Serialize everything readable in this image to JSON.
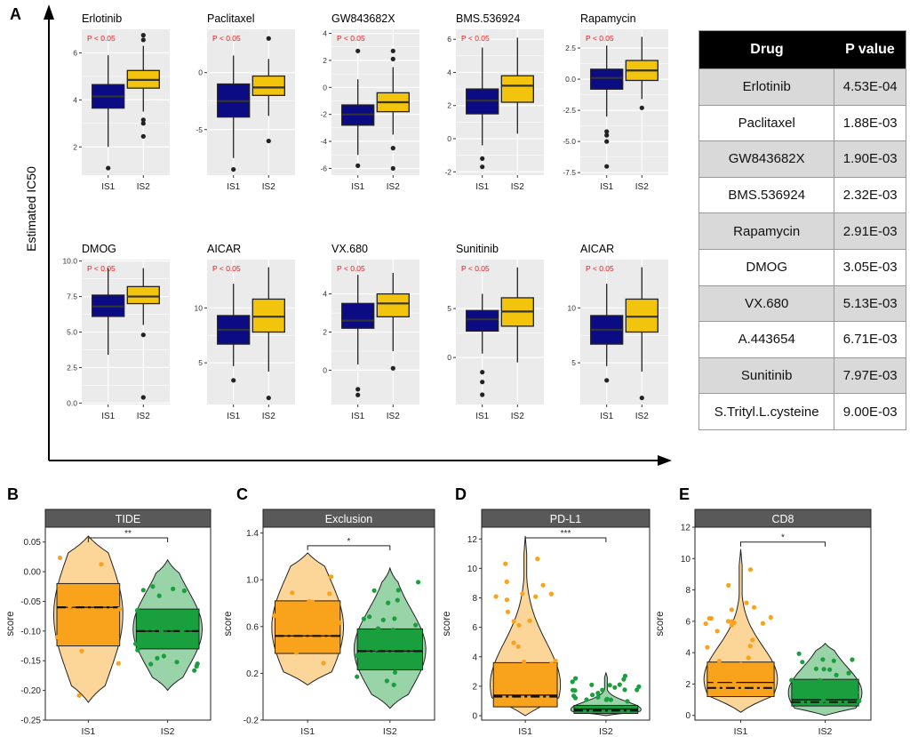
{
  "panel_labels": {
    "A": "A",
    "B": "B",
    "C": "C",
    "D": "D",
    "E": "E"
  },
  "axis_title_A": "Estimated IC50",
  "colors": {
    "is1_dark": "#0b0b84",
    "is2_gold": "#f2c40e",
    "is1_orange": "#f9a21b",
    "is2_green": "#1a9f3f",
    "sig_text": "#e41a1c",
    "panel_bg": "#ebebeb",
    "strip": "#595959"
  },
  "chart_data": [
    {
      "type": "box",
      "name": "Erlotinib",
      "sig": "P < 0.05",
      "categories": [
        "IS1",
        "IS2"
      ],
      "ylim": [
        0.8,
        7.0
      ],
      "yticks": [
        2,
        4,
        6
      ],
      "boxes": [
        {
          "q1": 3.65,
          "median": 4.15,
          "q3": 4.65,
          "whisker_lo": 2.0,
          "whisker_hi": 5.9,
          "outliers": [
            1.1
          ]
        },
        {
          "q1": 4.5,
          "median": 4.85,
          "q3": 5.25,
          "whisker_lo": 3.5,
          "whisker_hi": 6.3,
          "outliers": [
            6.55,
            6.75,
            3.15,
            3.0,
            2.45
          ]
        }
      ]
    },
    {
      "type": "box",
      "name": "Paclitaxel",
      "sig": "P < 0.05",
      "categories": [
        "IS1",
        "IS2"
      ],
      "ylim": [
        -9.0,
        3.8
      ],
      "yticks": [
        -5,
        0
      ],
      "boxes": [
        {
          "q1": -3.9,
          "median": -2.5,
          "q3": -1.0,
          "whisker_lo": -7.5,
          "whisker_hi": 1.5,
          "outliers": [
            -8.5
          ]
        },
        {
          "q1": -2.0,
          "median": -1.3,
          "q3": -0.3,
          "whisker_lo": -3.8,
          "whisker_hi": 1.2,
          "outliers": [
            3.0,
            -6.0
          ]
        }
      ]
    },
    {
      "type": "box",
      "name": "GW843682X",
      "sig": "P < 0.05",
      "categories": [
        "IS1",
        "IS2"
      ],
      "ylim": [
        -6.5,
        4.3
      ],
      "yticks": [
        -6,
        -4,
        -2,
        0,
        2,
        4
      ],
      "boxes": [
        {
          "q1": -2.8,
          "median": -2.0,
          "q3": -1.3,
          "whisker_lo": -5.0,
          "whisker_hi": 0.6,
          "outliers": [
            2.7,
            -5.8
          ]
        },
        {
          "q1": -1.8,
          "median": -1.1,
          "q3": -0.4,
          "whisker_lo": -3.5,
          "whisker_hi": 1.5,
          "outliers": [
            2.7,
            2.1,
            -4.5,
            -6.0
          ]
        }
      ]
    },
    {
      "type": "box",
      "name": "BMS.536924",
      "sig": "P < 0.05",
      "categories": [
        "IS1",
        "IS2"
      ],
      "ylim": [
        -2.2,
        6.6
      ],
      "yticks": [
        -2,
        0,
        2,
        4,
        6
      ],
      "boxes": [
        {
          "q1": 1.5,
          "median": 2.3,
          "q3": 3.0,
          "whisker_lo": -0.4,
          "whisker_hi": 5.5,
          "outliers": [
            -1.2,
            -1.7
          ]
        },
        {
          "q1": 2.2,
          "median": 3.2,
          "q3": 3.8,
          "whisker_lo": 0.3,
          "whisker_hi": 6.1,
          "outliers": []
        }
      ]
    },
    {
      "type": "box",
      "name": "Rapamycin",
      "sig": "P < 0.05",
      "categories": [
        "IS1",
        "IS2"
      ],
      "ylim": [
        -7.7,
        4.0
      ],
      "yticks": [
        -7.5,
        -5.0,
        -2.5,
        0.0,
        2.5
      ],
      "boxes": [
        {
          "q1": -0.8,
          "median": 0.1,
          "q3": 0.8,
          "whisker_lo": -3.0,
          "whisker_hi": 2.7,
          "outliers": [
            -4.2,
            -4.5,
            -5.0,
            -7.0
          ]
        },
        {
          "q1": -0.1,
          "median": 0.7,
          "q3": 1.5,
          "whisker_lo": -1.6,
          "whisker_hi": 3.4,
          "outliers": [
            -2.3
          ]
        }
      ]
    },
    {
      "type": "box",
      "name": "DMOG",
      "sig": "P < 0.05",
      "categories": [
        "IS1",
        "IS2"
      ],
      "ylim": [
        -0.1,
        10.1
      ],
      "yticks": [
        0.0,
        2.5,
        5.0,
        7.5,
        10.0
      ],
      "boxes": [
        {
          "q1": 6.1,
          "median": 6.8,
          "q3": 7.6,
          "whisker_lo": 3.4,
          "whisker_hi": 9.5,
          "outliers": []
        },
        {
          "q1": 7.0,
          "median": 7.5,
          "q3": 8.2,
          "whisker_lo": 5.5,
          "whisker_hi": 9.5,
          "outliers": [
            4.8,
            0.4
          ]
        }
      ]
    },
    {
      "type": "box",
      "name": "AICAR",
      "sig": "P < 0.05",
      "categories": [
        "IS1",
        "IS2"
      ],
      "ylim": [
        1.2,
        14.4
      ],
      "yticks": [
        5,
        10
      ],
      "boxes": [
        {
          "q1": 6.7,
          "median": 8.0,
          "q3": 9.3,
          "whisker_lo": 4.7,
          "whisker_hi": 12.2,
          "outliers": [
            3.4
          ]
        },
        {
          "q1": 7.8,
          "median": 9.2,
          "q3": 10.8,
          "whisker_lo": 4.2,
          "whisker_hi": 13.7,
          "outliers": [
            1.8
          ]
        }
      ]
    },
    {
      "type": "box",
      "name": "VX.680",
      "sig": "P < 0.05",
      "categories": [
        "IS1",
        "IS2"
      ],
      "ylim": [
        -1.8,
        5.8
      ],
      "yticks": [
        0,
        2,
        4
      ],
      "boxes": [
        {
          "q1": 2.2,
          "median": 2.6,
          "q3": 3.5,
          "whisker_lo": 0.3,
          "whisker_hi": 5.0,
          "outliers": [
            -1.0,
            -1.3
          ]
        },
        {
          "q1": 2.8,
          "median": 3.5,
          "q3": 4.0,
          "whisker_lo": 1.0,
          "whisker_hi": 5.1,
          "outliers": [
            0.1
          ]
        }
      ]
    },
    {
      "type": "box",
      "name": "Sunitinib",
      "sig": "P < 0.05",
      "categories": [
        "IS1",
        "IS2"
      ],
      "ylim": [
        -4.8,
        10.0
      ],
      "yticks": [
        0,
        5
      ],
      "boxes": [
        {
          "q1": 2.7,
          "median": 3.9,
          "q3": 4.8,
          "whisker_lo": 0.4,
          "whisker_hi": 6.5,
          "outliers": [
            -1.5,
            -2.5,
            -3.8
          ]
        },
        {
          "q1": 3.2,
          "median": 4.7,
          "q3": 6.1,
          "whisker_lo": -0.5,
          "whisker_hi": 9.2,
          "outliers": []
        }
      ]
    },
    {
      "type": "box",
      "name": "AICAR",
      "sig": "P < 0.05",
      "categories": [
        "IS1",
        "IS2"
      ],
      "ylim": [
        1.2,
        14.4
      ],
      "yticks": [
        5,
        10
      ],
      "boxes": [
        {
          "q1": 6.7,
          "median": 8.0,
          "q3": 9.3,
          "whisker_lo": 4.7,
          "whisker_hi": 12.2,
          "outliers": [
            3.4
          ]
        },
        {
          "q1": 7.8,
          "median": 9.2,
          "q3": 10.8,
          "whisker_lo": 4.2,
          "whisker_hi": 13.7,
          "outliers": [
            1.8
          ]
        }
      ]
    },
    {
      "type": "table",
      "columns": [
        "Drug",
        "P value"
      ],
      "rows": [
        [
          "Erlotinib",
          "4.53E-04"
        ],
        [
          "Paclitaxel",
          "1.88E-03"
        ],
        [
          "GW843682X",
          "1.90E-03"
        ],
        [
          "BMS.536924",
          "2.32E-03"
        ],
        [
          "Rapamycin",
          "2.91E-03"
        ],
        [
          "DMOG",
          "3.05E-03"
        ],
        [
          "VX.680",
          "5.13E-03"
        ],
        [
          "A.443654",
          "6.71E-03"
        ],
        [
          "Sunitinib",
          "7.97E-03"
        ],
        [
          "S.Trityl.L.cysteine",
          "9.00E-03"
        ]
      ]
    },
    {
      "type": "violin-box",
      "title": "TIDE",
      "ylabel": "score",
      "categories": [
        "IS1",
        "IS2"
      ],
      "sig": "**",
      "ylim": [
        -0.25,
        0.075
      ],
      "yticks": [
        -0.25,
        -0.2,
        -0.15,
        -0.1,
        -0.05,
        0.0,
        0.05
      ],
      "ytick_labels": [
        "-0.25",
        "-0.20",
        "-0.15",
        "-0.10",
        "-0.05",
        "0.00",
        "0.05"
      ],
      "groups": [
        {
          "q1": -0.125,
          "median": -0.06,
          "q3": -0.02,
          "mean": -0.06,
          "min": -0.22,
          "max": 0.06
        },
        {
          "q1": -0.13,
          "median": -0.1,
          "q3": -0.063,
          "mean": -0.1,
          "min": -0.2,
          "max": 0.02
        }
      ]
    },
    {
      "type": "violin-box",
      "title": "Exclusion",
      "ylabel": "score",
      "categories": [
        "IS1",
        "IS2"
      ],
      "sig": "*",
      "ylim": [
        -0.2,
        1.45
      ],
      "yticks": [
        -0.2,
        0.2,
        0.6,
        1.0,
        1.4
      ],
      "ytick_labels": [
        "-0.2",
        "0.2",
        "0.6",
        "1.0",
        "1.4"
      ],
      "groups": [
        {
          "q1": 0.37,
          "median": 0.52,
          "q3": 0.82,
          "mean": 0.52,
          "min": 0.1,
          "max": 1.23
        },
        {
          "q1": 0.23,
          "median": 0.39,
          "q3": 0.58,
          "mean": 0.39,
          "min": -0.1,
          "max": 1.1
        }
      ]
    },
    {
      "type": "violin-box",
      "title": "PD-L1",
      "ylabel": "score",
      "categories": [
        "IS1",
        "IS2"
      ],
      "sig": "***",
      "ylim": [
        -0.3,
        12.8
      ],
      "yticks": [
        0,
        2,
        4,
        6,
        8,
        10,
        12
      ],
      "ytick_labels": [
        "0",
        "2",
        "4",
        "6",
        "8",
        "10",
        "12"
      ],
      "groups": [
        {
          "q1": 0.6,
          "median": 1.4,
          "q3": 3.6,
          "mean": 1.3,
          "min": 0.0,
          "max": 12.2
        },
        {
          "q1": 0.15,
          "median": 0.45,
          "q3": 0.7,
          "mean": 0.35,
          "min": 0.0,
          "max": 2.9
        }
      ]
    },
    {
      "type": "violin-box",
      "title": "CD8",
      "ylabel": "score",
      "categories": [
        "IS1",
        "IS2"
      ],
      "sig": "*",
      "ylim": [
        -0.3,
        12.0
      ],
      "yticks": [
        0,
        2,
        4,
        6,
        8,
        10,
        12
      ],
      "ytick_labels": [
        "0",
        "2",
        "4",
        "6",
        "8",
        "10",
        "12"
      ],
      "groups": [
        {
          "q1": 1.2,
          "median": 2.1,
          "q3": 3.4,
          "mean": 1.75,
          "min": 0.2,
          "max": 10.6
        },
        {
          "q1": 0.6,
          "median": 1.0,
          "q3": 2.3,
          "mean": 0.85,
          "min": 0.0,
          "max": 4.6
        }
      ]
    }
  ]
}
